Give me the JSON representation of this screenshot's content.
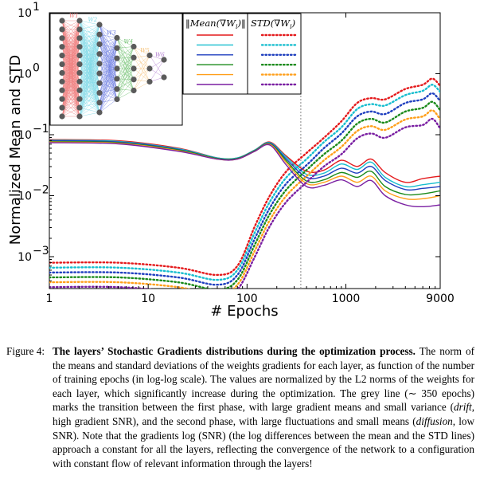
{
  "chart_data": {
    "type": "line",
    "xlabel": "# Epochs",
    "ylabel": "Normalized Mean and STD",
    "xscale": "log",
    "yscale": "log",
    "xlim": [
      1,
      9000
    ],
    "ylim": [
      0.0003,
      10
    ],
    "xticks": [
      {
        "value": 1,
        "label": "1"
      },
      {
        "value": 10,
        "label": "10"
      },
      {
        "value": 100,
        "label": "100"
      },
      {
        "value": 1000,
        "label": "1000"
      },
      {
        "value": 9000,
        "label": "9000"
      }
    ],
    "yticks": [
      {
        "value": 10,
        "base": "10",
        "exp": "1"
      },
      {
        "value": 1,
        "base": "10",
        "exp": "0"
      },
      {
        "value": 0.1,
        "base": "10",
        "exp": "−1"
      },
      {
        "value": 0.01,
        "base": "10",
        "exp": "−2"
      },
      {
        "value": 0.001,
        "base": "10",
        "exp": "−3"
      }
    ],
    "vline": 350,
    "legend": {
      "placement": "top",
      "header_mean": "‖Mean(∇W",
      "header_std": "STD(∇W",
      "header_sub": "i"
    },
    "layer_colors": [
      "#e41a1c",
      "#17becf",
      "#1f3fbf",
      "#1a8a1a",
      "#ff9f1a",
      "#7a1fa2"
    ],
    "mean_key_x": [
      1,
      5,
      20,
      50,
      80,
      120,
      170,
      250,
      400,
      600,
      900,
      1300,
      1800,
      2500,
      4000,
      6000,
      9000
    ],
    "mean_key_logy": [
      [
        -1.08,
        -1.1,
        -1.22,
        -1.38,
        -1.38,
        -1.25,
        -1.12,
        -1.35,
        -1.6,
        -1.58,
        -1.42,
        -1.52,
        -1.4,
        -1.62,
        -1.78,
        -1.72,
        -1.68
      ],
      [
        -1.09,
        -1.11,
        -1.23,
        -1.38,
        -1.38,
        -1.25,
        -1.13,
        -1.37,
        -1.65,
        -1.63,
        -1.48,
        -1.57,
        -1.45,
        -1.7,
        -1.85,
        -1.82,
        -1.78
      ],
      [
        -1.1,
        -1.12,
        -1.24,
        -1.39,
        -1.39,
        -1.26,
        -1.14,
        -1.4,
        -1.7,
        -1.68,
        -1.55,
        -1.63,
        -1.52,
        -1.75,
        -1.9,
        -1.88,
        -1.85
      ],
      [
        -1.11,
        -1.13,
        -1.25,
        -1.39,
        -1.39,
        -1.26,
        -1.15,
        -1.43,
        -1.76,
        -1.74,
        -1.62,
        -1.7,
        -1.6,
        -1.85,
        -1.98,
        -1.97,
        -1.92
      ],
      [
        -1.12,
        -1.14,
        -1.26,
        -1.4,
        -1.4,
        -1.27,
        -1.16,
        -1.46,
        -1.8,
        -1.78,
        -1.68,
        -1.78,
        -1.68,
        -1.92,
        -2.05,
        -2.05,
        -2.0
      ],
      [
        -1.13,
        -1.15,
        -1.27,
        -1.4,
        -1.4,
        -1.27,
        -1.17,
        -1.5,
        -1.85,
        -1.83,
        -1.74,
        -1.85,
        -1.75,
        -2.0,
        -2.15,
        -2.18,
        -2.15
      ]
    ],
    "std_key_x": [
      1,
      5,
      20,
      50,
      80,
      120,
      170,
      250,
      400,
      600,
      900,
      1300,
      1800,
      2500,
      4000,
      6000,
      7500,
      9000
    ],
    "std_key_logy": [
      [
        -3.1,
        -3.1,
        -3.18,
        -3.3,
        -3.15,
        -2.5,
        -2.0,
        -1.6,
        -1.3,
        -1.05,
        -0.78,
        -0.48,
        -0.4,
        -0.42,
        -0.25,
        -0.18,
        -0.08,
        -0.2
      ],
      [
        -3.18,
        -3.18,
        -3.26,
        -3.38,
        -3.22,
        -2.6,
        -2.1,
        -1.7,
        -1.4,
        -1.12,
        -0.88,
        -0.58,
        -0.5,
        -0.52,
        -0.35,
        -0.28,
        -0.18,
        -0.3
      ],
      [
        -3.26,
        -3.26,
        -3.34,
        -3.46,
        -3.3,
        -2.7,
        -2.2,
        -1.8,
        -1.5,
        -1.22,
        -0.98,
        -0.7,
        -0.62,
        -0.66,
        -0.48,
        -0.42,
        -0.32,
        -0.45
      ],
      [
        -3.34,
        -3.34,
        -3.42,
        -3.54,
        -3.38,
        -2.8,
        -2.3,
        -1.9,
        -1.58,
        -1.32,
        -1.1,
        -0.82,
        -0.74,
        -0.8,
        -0.62,
        -0.56,
        -0.46,
        -0.6
      ],
      [
        -3.42,
        -3.42,
        -3.5,
        -3.62,
        -3.46,
        -2.9,
        -2.4,
        -2.0,
        -1.68,
        -1.42,
        -1.2,
        -0.94,
        -0.86,
        -0.92,
        -0.75,
        -0.7,
        -0.6,
        -0.75
      ],
      [
        -3.5,
        -3.5,
        -3.58,
        -3.7,
        -3.54,
        -3.0,
        -2.5,
        -2.1,
        -1.78,
        -1.52,
        -1.32,
        -1.06,
        -0.98,
        -1.05,
        -0.88,
        -0.84,
        -0.74,
        -0.9
      ]
    ],
    "inset": {
      "layer_labels": [
        "W1",
        "W2",
        "W3",
        "W4",
        "W5",
        "W6"
      ],
      "layer_nodes": [
        12,
        12,
        10,
        7,
        5,
        3,
        2
      ],
      "node_color": "#5a5a5a",
      "edge_colors": [
        "#f08080",
        "#7fd8e6",
        "#6a7ae0",
        "#6fbf6f",
        "#f5c27a",
        "#b07ad0"
      ]
    }
  },
  "caption": {
    "label": "Figure 4:",
    "title": "The layers’ Stochastic Gradients distributions during the optimization process.",
    "text_1": " The norm of the means and standard deviations of the weights gradients for each layer, as function of the number of training epochs (in log-log scale). The values are normalized by the L2 norms of the weights for each layer, which significantly increase during the optimization. The grey line (∼ 350 epochs) marks the transition between the first phase, with large gradient means and small variance (",
    "drift": "drift",
    "text_2": ", high gradient SNR), and the second phase, with large fluctuations and small means (",
    "diffusion": "diffusion",
    "text_3": ", low SNR). Note that the gradients log (SNR) (the log differences between the mean and the STD lines) approach a constant for all the layers, reflecting the convergence of the network to a configuration with constant flow of relevant information through the layers!"
  }
}
